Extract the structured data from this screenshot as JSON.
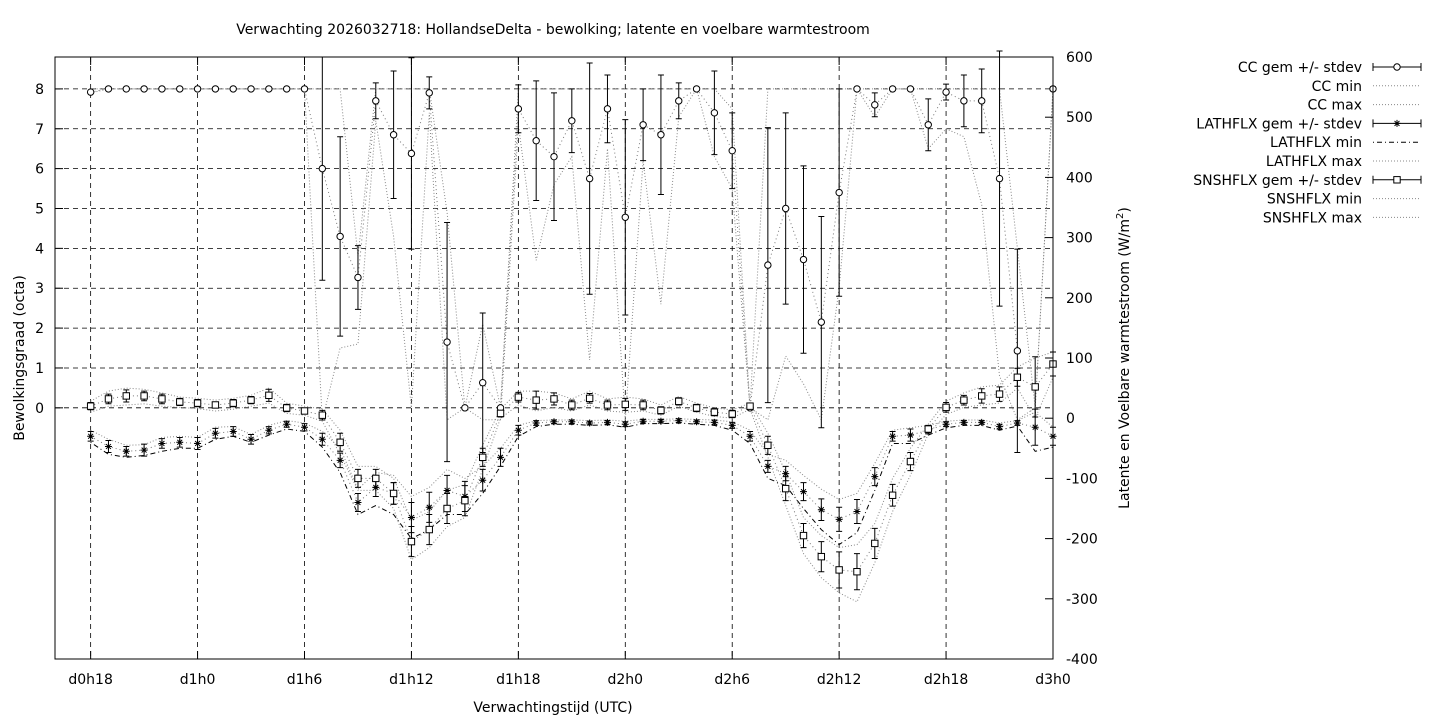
{
  "chart_data": {
    "type": "line",
    "title": "Verwachting 2026032718: HollandseDelta - bewolking; latente en voelbare warmtestroom",
    "xlabel": "Verwachtingstijd (UTC)",
    "ylabel": "Bewolkingsgraad (octa)",
    "y2label_main": "Latente en Voelbare warmtestroom (W/m",
    "y2label_sup": "2",
    "y2label_end": ")",
    "xlim": [
      16,
      72
    ],
    "ylim": [
      -6.3,
      8.8
    ],
    "y2lim": [
      -400,
      600
    ],
    "grid": true,
    "legend_position": "outside-right",
    "x_ticks": [
      {
        "x": 18,
        "label": "d0h18"
      },
      {
        "x": 24,
        "label": "d1h0"
      },
      {
        "x": 30,
        "label": "d1h6"
      },
      {
        "x": 36,
        "label": "d1h12"
      },
      {
        "x": 42,
        "label": "d1h18"
      },
      {
        "x": 48,
        "label": "d2h0"
      },
      {
        "x": 54,
        "label": "d2h6"
      },
      {
        "x": 60,
        "label": "d2h12"
      },
      {
        "x": 66,
        "label": "d2h18"
      },
      {
        "x": 72,
        "label": "d3h0"
      }
    ],
    "y_ticks": [
      {
        "v": 0,
        "label": "0"
      },
      {
        "v": 1,
        "label": "1"
      },
      {
        "v": 2,
        "label": "2"
      },
      {
        "v": 3,
        "label": "3"
      },
      {
        "v": 4,
        "label": "4"
      },
      {
        "v": 5,
        "label": "5"
      },
      {
        "v": 6,
        "label": "6"
      },
      {
        "v": 7,
        "label": "7"
      },
      {
        "v": 8,
        "label": "8"
      }
    ],
    "y2_ticks": [
      {
        "v": 600,
        "label": "600"
      },
      {
        "v": 500,
        "label": "500"
      },
      {
        "v": 400,
        "label": "400"
      },
      {
        "v": 300,
        "label": "300"
      },
      {
        "v": 200,
        "label": "200"
      },
      {
        "v": 100,
        "label": "100"
      },
      {
        "v": 0,
        "label": "0"
      },
      {
        "v": -100,
        "label": "-100"
      },
      {
        "v": -200,
        "label": "-200"
      },
      {
        "v": -300,
        "label": "-300"
      },
      {
        "v": -400,
        "label": "-400"
      }
    ],
    "legend": [
      {
        "label": "CC gem +/- stdev",
        "style": "errbar-circle"
      },
      {
        "label": "CC min",
        "style": "dotted"
      },
      {
        "label": "CC max",
        "style": "dotted"
      },
      {
        "label": "LATHFLX gem +/- stdev",
        "style": "errbar-star"
      },
      {
        "label": "LATHFLX min",
        "style": "dashdot"
      },
      {
        "label": "LATHFLX max",
        "style": "dotted"
      },
      {
        "label": "SNSHFLX gem +/- stdev",
        "style": "errbar-square"
      },
      {
        "label": "SNSHFLX min",
        "style": "dotted"
      },
      {
        "label": "SNSHFLX max",
        "style": "dotted"
      }
    ],
    "x": [
      18,
      19,
      20,
      21,
      22,
      23,
      24,
      25,
      26,
      27,
      28,
      29,
      30,
      31,
      32,
      33,
      34,
      35,
      36,
      37,
      38,
      39,
      40,
      41,
      42,
      43,
      44,
      45,
      46,
      47,
      48,
      49,
      50,
      51,
      52,
      53,
      54,
      55,
      56,
      57,
      58,
      59,
      60,
      61,
      62,
      63,
      64,
      65,
      66,
      67,
      68,
      69,
      70,
      71,
      72
    ],
    "series": [
      {
        "name": "CC gem +/- stdev",
        "axis": "y1",
        "marker": "circle",
        "values": [
          7.92,
          8,
          8,
          8,
          8,
          8,
          8,
          8,
          8,
          8,
          8,
          8,
          8,
          6.0,
          4.3,
          3.27,
          7.7,
          6.85,
          6.38,
          7.9,
          1.65,
          0.0,
          0.63,
          0.0,
          7.5,
          6.7,
          6.3,
          7.2,
          5.75,
          7.5,
          4.78,
          7.1,
          6.85,
          7.7,
          8,
          7.4,
          6.45,
          0.0,
          3.58,
          5.0,
          3.72,
          2.15,
          5.4,
          8,
          7.6,
          8,
          8,
          7.1,
          7.92,
          7.7,
          7.7,
          5.75,
          1.43,
          null,
          8
        ],
        "stdev": [
          0,
          0,
          0,
          0,
          0,
          0,
          0,
          0,
          0,
          0,
          0,
          0,
          0,
          2.8,
          2.5,
          0.8,
          0.45,
          1.6,
          2.4,
          0.4,
          3.0,
          0,
          1.75,
          0,
          0.6,
          1.5,
          1.6,
          0.8,
          2.9,
          0.85,
          2.45,
          0.9,
          1.5,
          0.45,
          0,
          1.05,
          0.95,
          0,
          3.45,
          2.4,
          2.35,
          2.65,
          2.6,
          0,
          0.3,
          0,
          0,
          0.65,
          0.2,
          0.65,
          0.8,
          3.2,
          2.55,
          0,
          0.05
        ]
      },
      {
        "name": "LATHFLX gem +/- stdev",
        "axis": "y2",
        "marker": "star",
        "values": [
          -30,
          -47,
          -55,
          -53,
          -42,
          -40,
          -42,
          -25,
          -22,
          -35,
          -20,
          -10,
          -15,
          -35,
          -70,
          -140,
          -115,
          -125,
          -165,
          -148,
          -120,
          -130,
          -103,
          -65,
          -20,
          -8,
          -6,
          -6,
          -8,
          -7,
          -10,
          -5,
          -5,
          -4,
          -6,
          -7,
          -12,
          -30,
          -80,
          -92,
          -122,
          -152,
          -168,
          -155,
          -97,
          -30,
          -28,
          -20,
          -10,
          -7,
          -7,
          -14,
          -8,
          -15,
          -30
        ],
        "stdev": [
          8,
          10,
          8,
          10,
          8,
          8,
          10,
          8,
          8,
          8,
          6,
          5,
          6,
          10,
          12,
          15,
          15,
          18,
          25,
          25,
          25,
          25,
          18,
          15,
          8,
          4,
          3,
          3,
          3,
          3,
          4,
          3,
          3,
          3,
          3,
          4,
          5,
          8,
          10,
          12,
          15,
          18,
          20,
          20,
          15,
          8,
          10,
          6,
          4,
          3,
          3,
          4,
          4,
          30,
          15
        ]
      },
      {
        "name": "SNSHFLX gem +/- stdev",
        "axis": "y2",
        "marker": "square",
        "values": [
          20,
          32,
          37,
          37,
          32,
          27,
          25,
          22,
          25,
          30,
          38,
          17,
          12,
          5,
          -40,
          -100,
          -100,
          -125,
          -205,
          -185,
          -150,
          -137,
          -65,
          8,
          35,
          30,
          32,
          22,
          33,
          22,
          23,
          22,
          13,
          28,
          17,
          10,
          7,
          20,
          -45,
          -117,
          -195,
          -230,
          -252,
          -255,
          -208,
          -128,
          -72,
          -18,
          18,
          30,
          37,
          40,
          68,
          52,
          90
        ],
        "stdev": [
          6,
          8,
          10,
          8,
          8,
          6,
          6,
          5,
          6,
          6,
          10,
          6,
          5,
          8,
          15,
          15,
          15,
          18,
          25,
          25,
          25,
          25,
          15,
          6,
          8,
          15,
          10,
          8,
          8,
          8,
          10,
          8,
          6,
          6,
          6,
          6,
          6,
          4,
          15,
          20,
          20,
          25,
          30,
          30,
          25,
          18,
          15,
          6,
          8,
          8,
          12,
          12,
          15,
          50,
          20
        ]
      },
      {
        "name": "CC min",
        "axis": "y1",
        "style": "dotted",
        "values": [
          7.9,
          8,
          8,
          8,
          8,
          8,
          8,
          8,
          8,
          8,
          8,
          8,
          8,
          -0.3,
          1.5,
          1.6,
          7.2,
          4.3,
          0,
          7.4,
          -0.3,
          0,
          -0.3,
          -0.3,
          7.1,
          3.7,
          5.6,
          6.3,
          1.2,
          6.5,
          -0.3,
          6.2,
          2.6,
          7.3,
          8,
          6.3,
          5.5,
          0,
          -0.3,
          1.3,
          0.6,
          -0.3,
          3.0,
          8,
          7.3,
          8,
          8,
          6.5,
          7.0,
          6.8,
          5.1,
          0.8,
          -0.3,
          0,
          8
        ]
      },
      {
        "name": "CC max",
        "axis": "y1",
        "style": "dotted",
        "values": [
          8,
          8,
          8,
          8,
          8,
          8,
          8,
          8,
          8,
          8,
          8,
          8,
          8,
          8,
          8,
          3.8,
          8,
          8,
          8,
          8,
          4.9,
          0,
          2.1,
          0,
          8,
          8,
          8,
          8,
          8,
          8,
          8,
          8,
          8,
          8,
          8,
          8,
          7.5,
          0,
          8,
          8,
          8,
          8,
          8,
          8,
          8,
          8,
          8,
          8,
          8,
          8,
          8,
          8,
          4.0,
          0,
          8
        ]
      },
      {
        "name": "LATHFLX min",
        "axis": "y2",
        "style": "dashdot",
        "values": [
          -40,
          -60,
          -65,
          -62,
          -55,
          -50,
          -50,
          -35,
          -30,
          -40,
          -28,
          -18,
          -22,
          -48,
          -90,
          -160,
          -145,
          -160,
          -200,
          -185,
          -160,
          -160,
          -125,
          -80,
          -30,
          -14,
          -10,
          -10,
          -12,
          -11,
          -15,
          -9,
          -9,
          -8,
          -10,
          -12,
          -20,
          -42,
          -100,
          -112,
          -150,
          -185,
          -210,
          -190,
          -120,
          -42,
          -42,
          -28,
          -16,
          -12,
          -12,
          -20,
          -13,
          -55,
          -48
        ]
      },
      {
        "name": "LATHFLX max",
        "axis": "y2",
        "style": "dotted",
        "values": [
          -20,
          -35,
          -45,
          -44,
          -32,
          -30,
          -32,
          -15,
          -14,
          -27,
          -12,
          -4,
          -8,
          -22,
          -50,
          -118,
          -90,
          -95,
          -130,
          -115,
          -85,
          -100,
          -80,
          -50,
          -12,
          -4,
          -3,
          -3,
          -4,
          -3,
          -5,
          -2,
          -2,
          -1,
          -2,
          -3,
          -6,
          -20,
          -60,
          -70,
          -95,
          -118,
          -135,
          -125,
          -75,
          -20,
          -16,
          -12,
          -5,
          -3,
          -3,
          -8,
          -4,
          10,
          -15
        ]
      },
      {
        "name": "SNSHFLX min",
        "axis": "y2",
        "style": "dotted",
        "values": [
          10,
          20,
          22,
          24,
          20,
          18,
          16,
          12,
          15,
          20,
          25,
          8,
          5,
          -5,
          -60,
          -120,
          -120,
          -150,
          -235,
          -215,
          -180,
          -165,
          -85,
          0,
          22,
          12,
          18,
          12,
          22,
          12,
          10,
          12,
          5,
          20,
          10,
          3,
          0,
          15,
          -65,
          -145,
          -225,
          -265,
          -290,
          -305,
          -240,
          -155,
          -95,
          -26,
          6,
          18,
          22,
          25,
          50,
          0,
          68
        ]
      },
      {
        "name": "SNSHFLX max",
        "axis": "y2",
        "style": "dotted",
        "values": [
          28,
          45,
          50,
          48,
          42,
          35,
          33,
          30,
          33,
          38,
          50,
          25,
          20,
          15,
          -20,
          -80,
          -80,
          -100,
          -170,
          -155,
          -120,
          -110,
          -45,
          15,
          45,
          45,
          42,
          32,
          45,
          32,
          35,
          32,
          22,
          36,
          25,
          17,
          14,
          25,
          -25,
          -90,
          -165,
          -195,
          -215,
          -210,
          -175,
          -100,
          -50,
          -10,
          28,
          42,
          52,
          55,
          85,
          100,
          110
        ]
      }
    ]
  }
}
